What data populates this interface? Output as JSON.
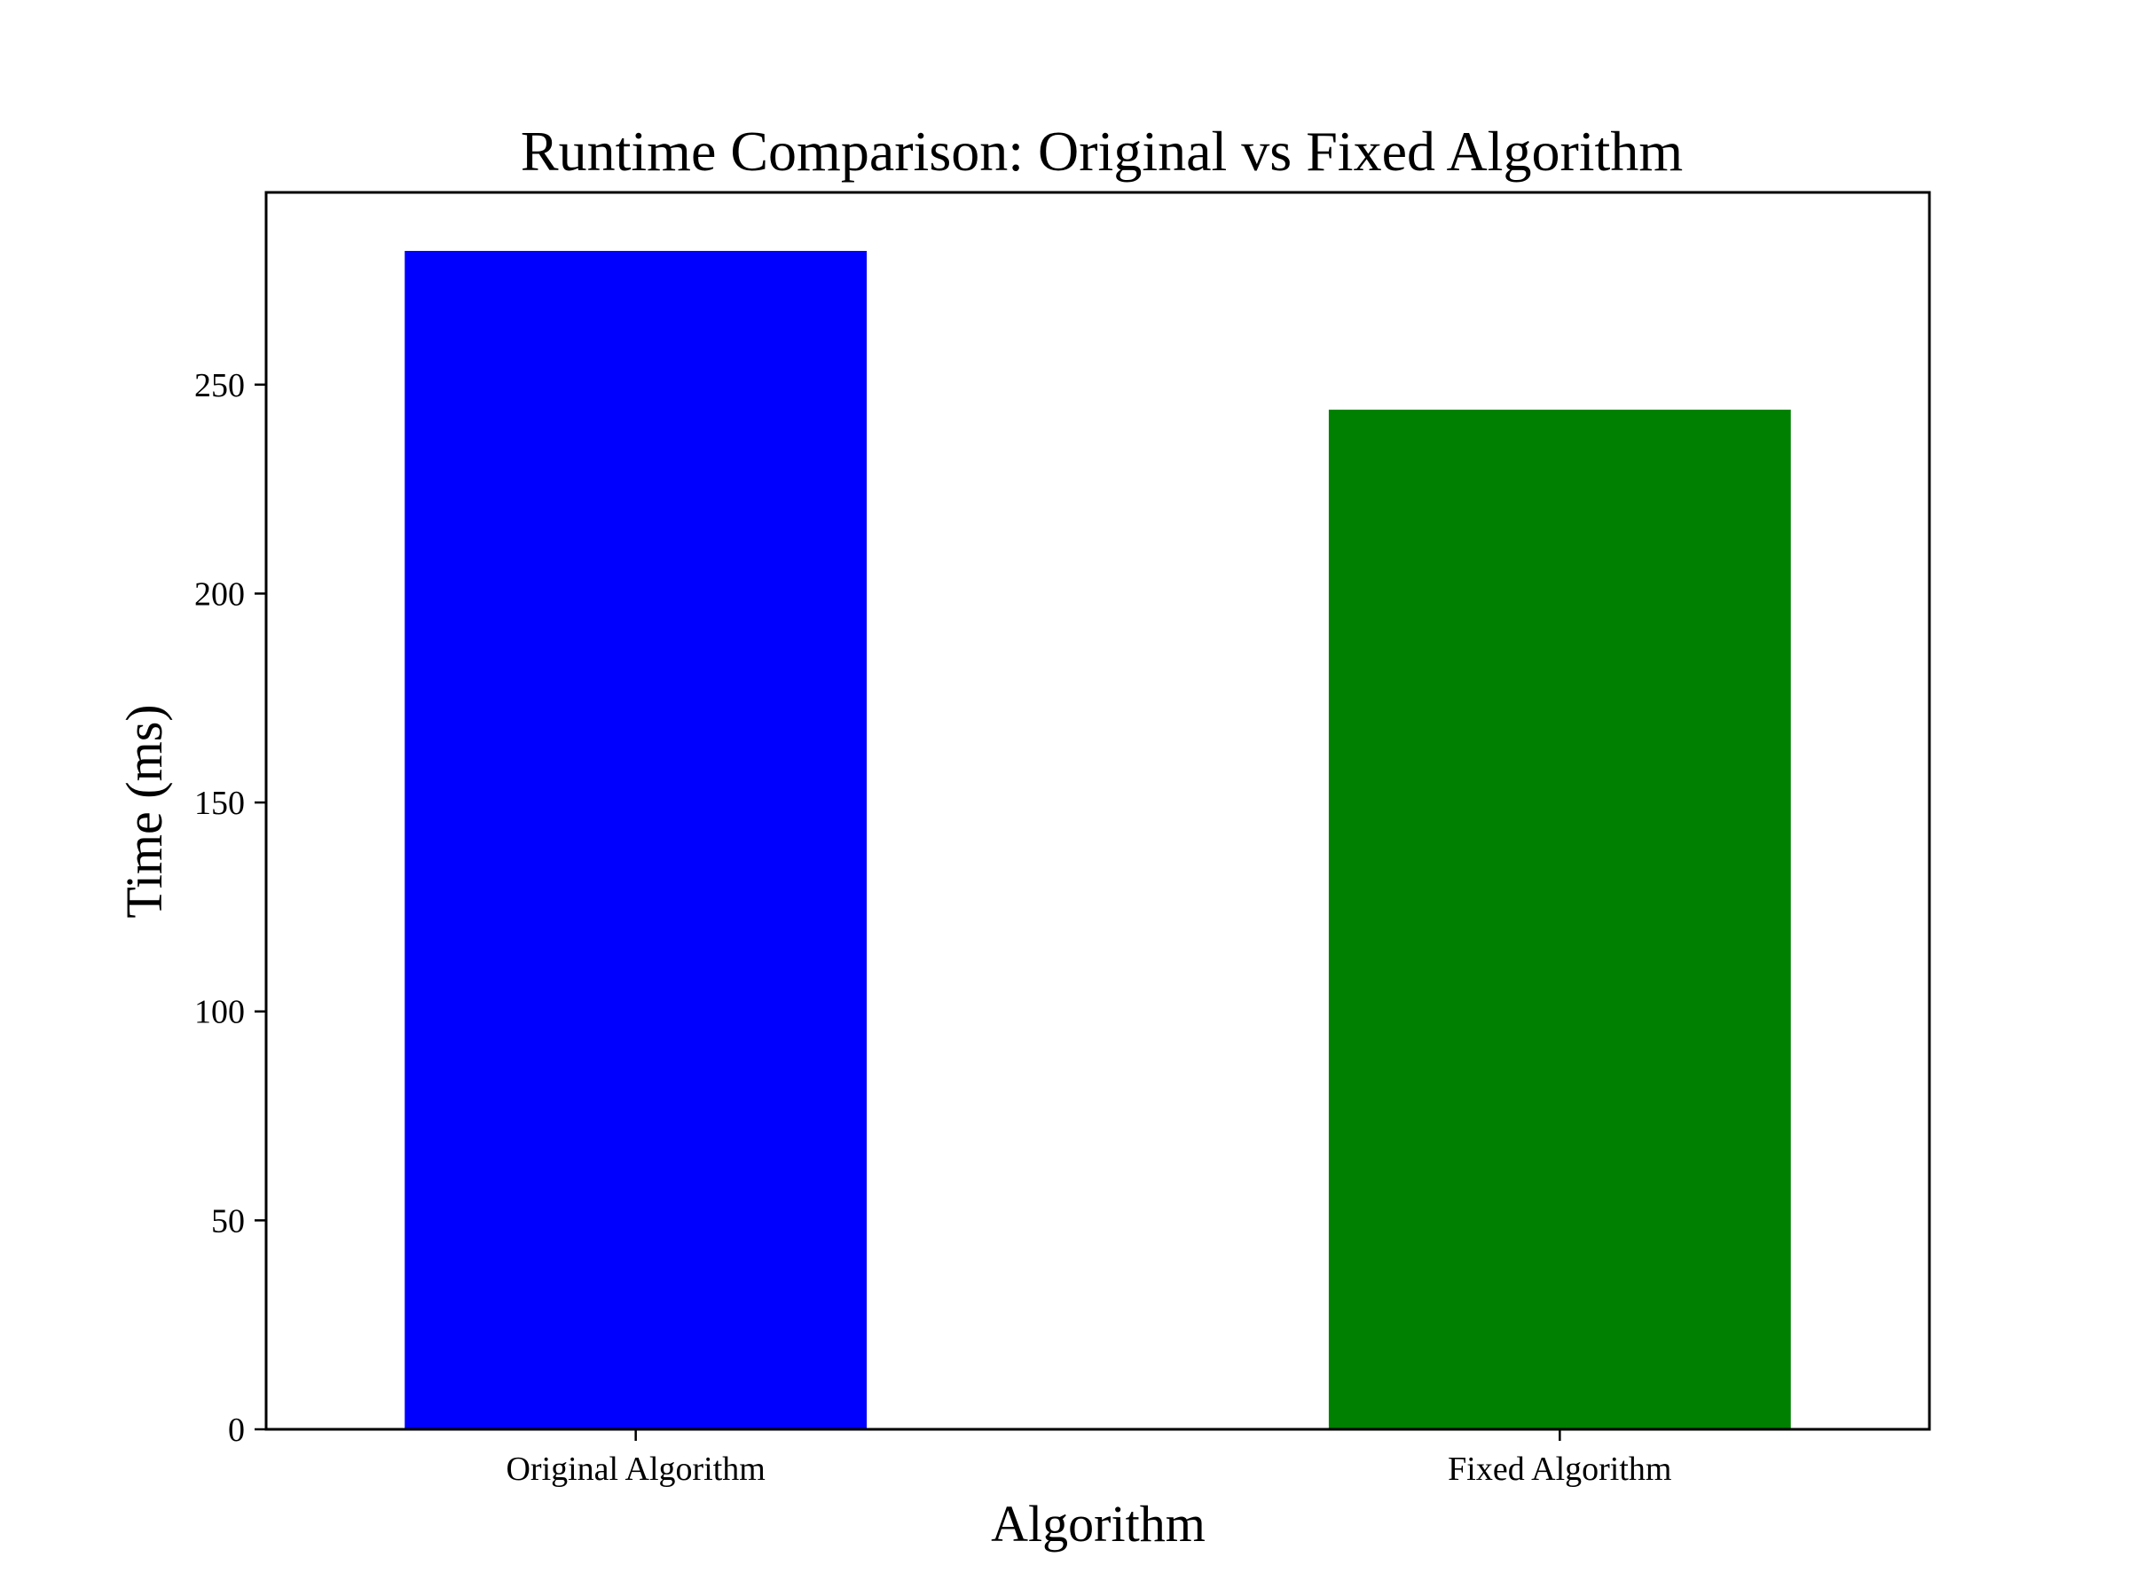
{
  "chart_data": {
    "type": "bar",
    "title": "Runtime Comparison: Original vs Fixed Algorithm",
    "xlabel": "Algorithm",
    "ylabel": "Time (ms)",
    "categories": [
      "Original Algorithm",
      "Fixed Algorithm"
    ],
    "values": [
      282,
      244
    ],
    "bar_colors": [
      "#0000ff",
      "#008000"
    ],
    "ylim": [
      0,
      296
    ],
    "yticks": [
      0,
      50,
      100,
      150,
      200,
      250
    ],
    "grid": false,
    "legend": "none"
  }
}
